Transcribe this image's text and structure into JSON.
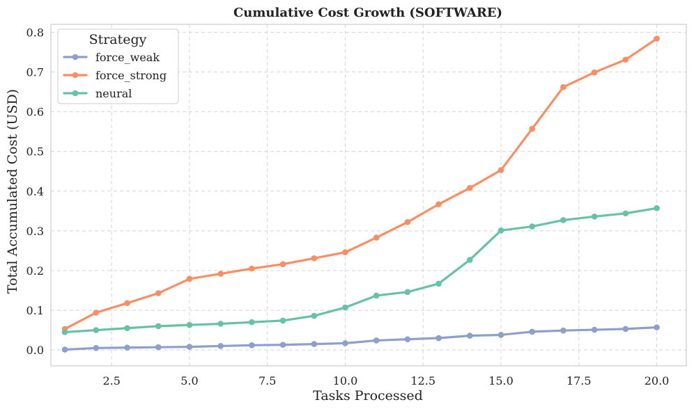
{
  "chart_data": {
    "type": "line",
    "title": "Cumulative Cost Growth (SOFTWARE)",
    "xlabel": "Tasks Processed",
    "ylabel": "Total Accumulated Cost (USD)",
    "xlim": [
      0.55,
      20.95
    ],
    "ylim": [
      -0.04,
      0.82
    ],
    "xticks": [
      2.5,
      5.0,
      7.5,
      10.0,
      12.5,
      15.0,
      17.5,
      20.0
    ],
    "xtick_labels": [
      "2.5",
      "5.0",
      "7.5",
      "10.0",
      "12.5",
      "15.0",
      "17.5",
      "20.0"
    ],
    "yticks": [
      0.0,
      0.1,
      0.2,
      0.3,
      0.4,
      0.5,
      0.6,
      0.7,
      0.8
    ],
    "ytick_labels": [
      "0.0",
      "0.1",
      "0.2",
      "0.3",
      "0.4",
      "0.5",
      "0.6",
      "0.7",
      "0.8"
    ],
    "grid": true,
    "legend": {
      "title": "Strategy",
      "position": "top-left"
    },
    "x": [
      1,
      2,
      3,
      4,
      5,
      6,
      7,
      8,
      9,
      10,
      11,
      12,
      13,
      14,
      15,
      16,
      17,
      18,
      19,
      20
    ],
    "series": [
      {
        "name": "force_weak",
        "color": "#8da0cb",
        "values": [
          0.001,
          0.005,
          0.006,
          0.007,
          0.008,
          0.01,
          0.012,
          0.013,
          0.015,
          0.017,
          0.024,
          0.027,
          0.03,
          0.036,
          0.038,
          0.046,
          0.049,
          0.051,
          0.053,
          0.057
        ]
      },
      {
        "name": "force_strong",
        "color": "#fc8d62",
        "values": [
          0.053,
          0.094,
          0.118,
          0.143,
          0.179,
          0.192,
          0.205,
          0.216,
          0.231,
          0.246,
          0.283,
          0.322,
          0.367,
          0.408,
          0.453,
          0.557,
          0.662,
          0.699,
          0.731,
          0.784
        ]
      },
      {
        "name": "neural",
        "color": "#66c2a5",
        "values": [
          0.045,
          0.05,
          0.055,
          0.06,
          0.063,
          0.066,
          0.07,
          0.074,
          0.086,
          0.107,
          0.137,
          0.146,
          0.167,
          0.227,
          0.301,
          0.311,
          0.327,
          0.336,
          0.344,
          0.357
        ]
      }
    ]
  }
}
